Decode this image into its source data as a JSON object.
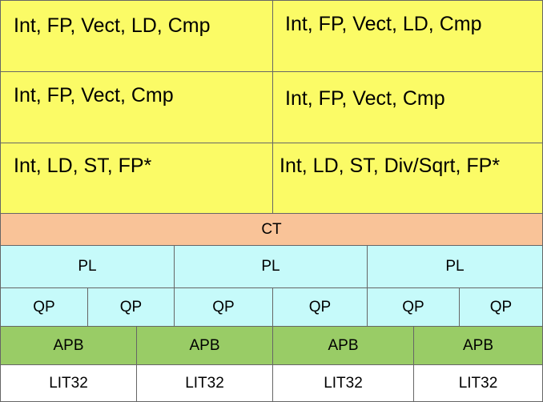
{
  "ports": {
    "row1": [
      "Int, FP, Vect, LD, Cmp",
      "Int, FP, Vect, LD, Cmp"
    ],
    "row2": [
      "Int, FP, Vect, Cmp",
      "Int, FP, Vect, Cmp"
    ],
    "row3": [
      "Int, LD, ST, FP*",
      "Int, LD, ST, Div/Sqrt, FP*"
    ]
  },
  "ct": "CT",
  "pl": [
    "PL",
    "PL",
    "PL"
  ],
  "qp": [
    "QP",
    "QP",
    "QP",
    "QP",
    "QP",
    "QP"
  ],
  "apb": [
    "APB",
    "APB",
    "APB",
    "APB"
  ],
  "lit32": [
    "LIT32",
    "LIT32",
    "LIT32",
    "LIT32"
  ],
  "colors": {
    "ports": "#fbfb66",
    "ct": "#f9c398",
    "pl_qp": "#c6fafa",
    "apb": "#99cc66",
    "lit32": "#ffffff",
    "border": "#666666"
  }
}
